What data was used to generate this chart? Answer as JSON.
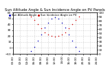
{
  "title": "Sun Altitude Angle & Sun Incidence Angle on PV Panels",
  "blue_label": "Sun Altitude Angle",
  "red_label": "Sun Incidence Angle on PV",
  "x_hours": [
    5,
    6,
    7,
    8,
    9,
    10,
    11,
    12,
    13,
    14,
    15,
    16,
    17,
    18,
    19
  ],
  "blue_altitude": [
    -5,
    2,
    12,
    23,
    34,
    43,
    49,
    52,
    49,
    43,
    34,
    23,
    12,
    2,
    -5
  ],
  "red_incidence": [
    90,
    82,
    72,
    62,
    52,
    46,
    43,
    42,
    43,
    46,
    52,
    62,
    72,
    82,
    90
  ],
  "xlim": [
    0,
    24
  ],
  "ylim_left": [
    -10,
    60
  ],
  "ylim_right": [
    0,
    100
  ],
  "left_yticks": [
    -10,
    0,
    10,
    20,
    30,
    40,
    50,
    60
  ],
  "right_yticks": [
    0,
    10,
    20,
    30,
    40,
    50,
    60,
    70,
    80,
    90,
    100
  ],
  "xtick_values": [
    0,
    2,
    4,
    6,
    8,
    10,
    12,
    14,
    16,
    18,
    20,
    22,
    24
  ],
  "background": "#ffffff",
  "blue_color": "#0000bb",
  "red_color": "#cc0000",
  "grid_color": "#999999",
  "title_fontsize": 3.8,
  "tick_fontsize": 3.0,
  "legend_fontsize": 2.8,
  "marker_size": 1.2
}
